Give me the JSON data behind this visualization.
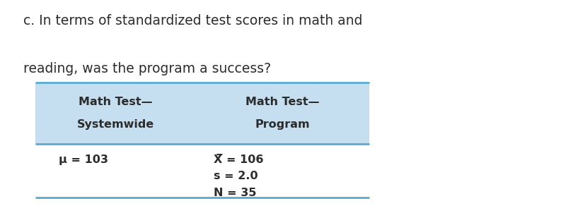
{
  "title_line1": "c. In terms of standardized test scores in math and",
  "title_line2": "reading, was the program a success?",
  "col1_header_line1": "Math Test—",
  "col1_header_line2": "Systemwide",
  "col2_header_line1": "Math Test—",
  "col2_header_line2": "Program",
  "col1_data": [
    "μ = 103"
  ],
  "col2_data": [
    "X̅ = 106",
    "s = 2.0",
    "N = 35"
  ],
  "header_bg": "#c5dff0",
  "border_color": "#5aaad0",
  "text_color": "#2c2c2c",
  "bg_color": "#ffffff",
  "title_fontsize": 13.5,
  "header_fontsize": 11.5,
  "data_fontsize": 11.5
}
